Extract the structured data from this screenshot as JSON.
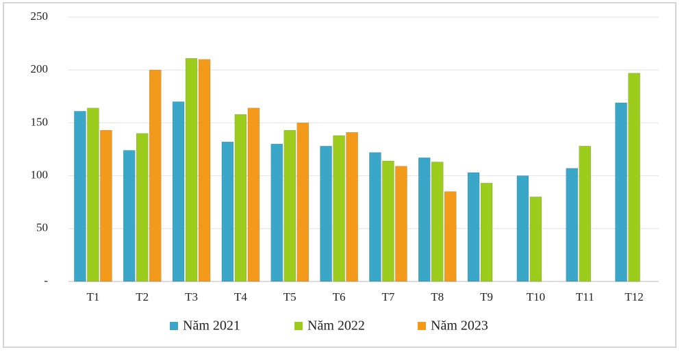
{
  "chart_data": {
    "type": "bar",
    "categories": [
      "T1",
      "T2",
      "T3",
      "T4",
      "T5",
      "T6",
      "T7",
      "T8",
      "T9",
      "T10",
      "T11",
      "T12"
    ],
    "series": [
      {
        "name": "Năm 2021",
        "color": "#3aa6c8",
        "values": [
          161,
          124,
          170,
          132,
          130,
          128,
          122,
          117,
          103,
          100,
          107,
          169
        ]
      },
      {
        "name": "Năm 2022",
        "color": "#9ccc1c",
        "values": [
          164,
          140,
          211,
          158,
          143,
          138,
          114,
          113,
          93,
          80,
          128,
          197
        ]
      },
      {
        "name": "Năm 2023",
        "color": "#f49a1a",
        "values": [
          143,
          200,
          210,
          164,
          150,
          141,
          109,
          85,
          null,
          null,
          null,
          null
        ]
      }
    ],
    "ylim": [
      0,
      250
    ],
    "yticks": [
      {
        "value": 0,
        "label": "-"
      },
      50,
      100,
      150,
      200,
      250
    ],
    "grid": true,
    "legend": "bottom"
  }
}
